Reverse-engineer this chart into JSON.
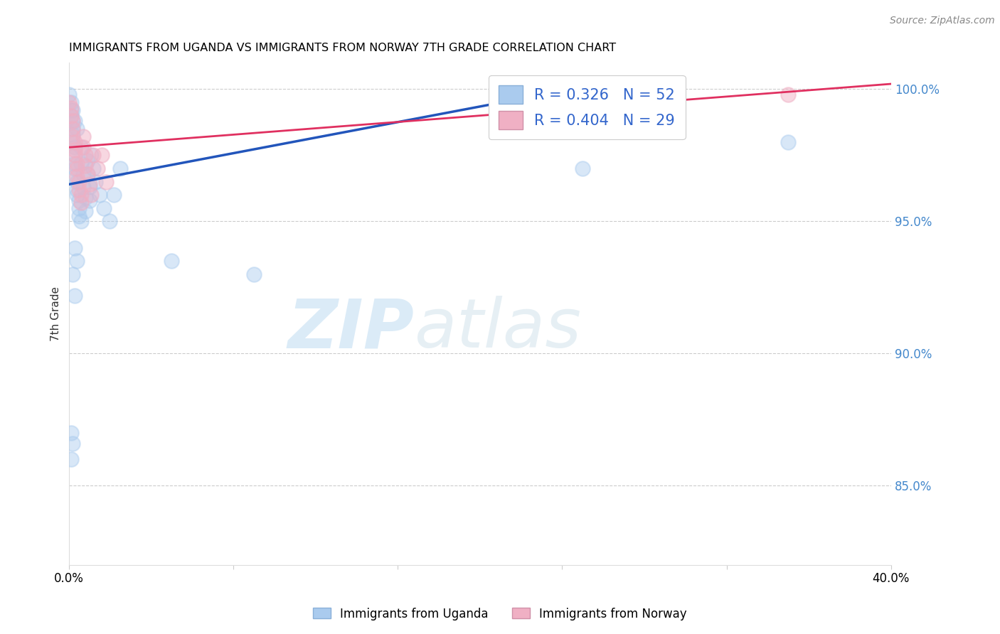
{
  "title": "IMMIGRANTS FROM UGANDA VS IMMIGRANTS FROM NORWAY 7TH GRADE CORRELATION CHART",
  "source_text": "Source: ZipAtlas.com",
  "ylabel": "7th Grade",
  "xlim": [
    0.0,
    0.4
  ],
  "ylim": [
    0.82,
    1.01
  ],
  "yticks": [
    0.85,
    0.9,
    0.95,
    1.0
  ],
  "ytick_labels": [
    "85.0%",
    "90.0%",
    "95.0%",
    "100.0%"
  ],
  "legend_R_uganda": "R = 0.326",
  "legend_N_uganda": "N = 52",
  "legend_R_norway": "R = 0.404",
  "legend_N_norway": "N = 29",
  "uganda_face_color": "#aacbee",
  "norway_face_color": "#f0b0c4",
  "trend_uganda_color": "#2255bb",
  "trend_norway_color": "#e03060",
  "watermark_zip": "ZIP",
  "watermark_atlas": "atlas",
  "legend_label_uganda": "Immigrants from Uganda",
  "legend_label_norway": "Immigrants from Norway",
  "uganda_x": [
    0.0,
    0.001,
    0.001,
    0.001,
    0.002,
    0.002,
    0.002,
    0.002,
    0.003,
    0.003,
    0.003,
    0.003,
    0.003,
    0.004,
    0.004,
    0.004,
    0.005,
    0.005,
    0.005,
    0.006,
    0.006,
    0.006,
    0.007,
    0.007,
    0.008,
    0.008,
    0.009,
    0.009,
    0.01,
    0.01,
    0.011,
    0.012,
    0.013,
    0.015,
    0.017,
    0.02,
    0.022,
    0.025,
    0.003,
    0.004,
    0.002,
    0.003,
    0.001,
    0.002,
    0.001,
    0.25,
    0.35,
    0.05,
    0.09,
    0.004,
    0.003,
    0.002
  ],
  "uganda_y": [
    0.998,
    0.995,
    0.992,
    0.99,
    0.988,
    0.985,
    0.983,
    0.98,
    0.978,
    0.975,
    0.972,
    0.97,
    0.967,
    0.965,
    0.962,
    0.96,
    0.958,
    0.955,
    0.952,
    0.95,
    0.978,
    0.972,
    0.968,
    0.963,
    0.959,
    0.954,
    0.973,
    0.968,
    0.963,
    0.958,
    0.975,
    0.97,
    0.965,
    0.96,
    0.955,
    0.95,
    0.96,
    0.97,
    0.94,
    0.935,
    0.93,
    0.922,
    0.87,
    0.866,
    0.86,
    0.97,
    0.98,
    0.935,
    0.93,
    0.985,
    0.988,
    0.992
  ],
  "norway_x": [
    0.0,
    0.001,
    0.001,
    0.002,
    0.002,
    0.002,
    0.003,
    0.003,
    0.003,
    0.004,
    0.004,
    0.004,
    0.005,
    0.005,
    0.006,
    0.006,
    0.007,
    0.007,
    0.008,
    0.008,
    0.009,
    0.01,
    0.011,
    0.012,
    0.014,
    0.016,
    0.018,
    0.25,
    0.35
  ],
  "norway_y": [
    0.995,
    0.993,
    0.99,
    0.988,
    0.985,
    0.982,
    0.98,
    0.977,
    0.975,
    0.972,
    0.97,
    0.967,
    0.965,
    0.962,
    0.96,
    0.957,
    0.982,
    0.978,
    0.975,
    0.971,
    0.968,
    0.964,
    0.96,
    0.975,
    0.97,
    0.975,
    0.965,
    1.001,
    0.998
  ],
  "uganda_trend_x": [
    0.0,
    0.265
  ],
  "uganda_trend_y": [
    0.964,
    1.003
  ],
  "norway_trend_x": [
    0.0,
    0.4
  ],
  "norway_trend_y": [
    0.978,
    1.002
  ]
}
